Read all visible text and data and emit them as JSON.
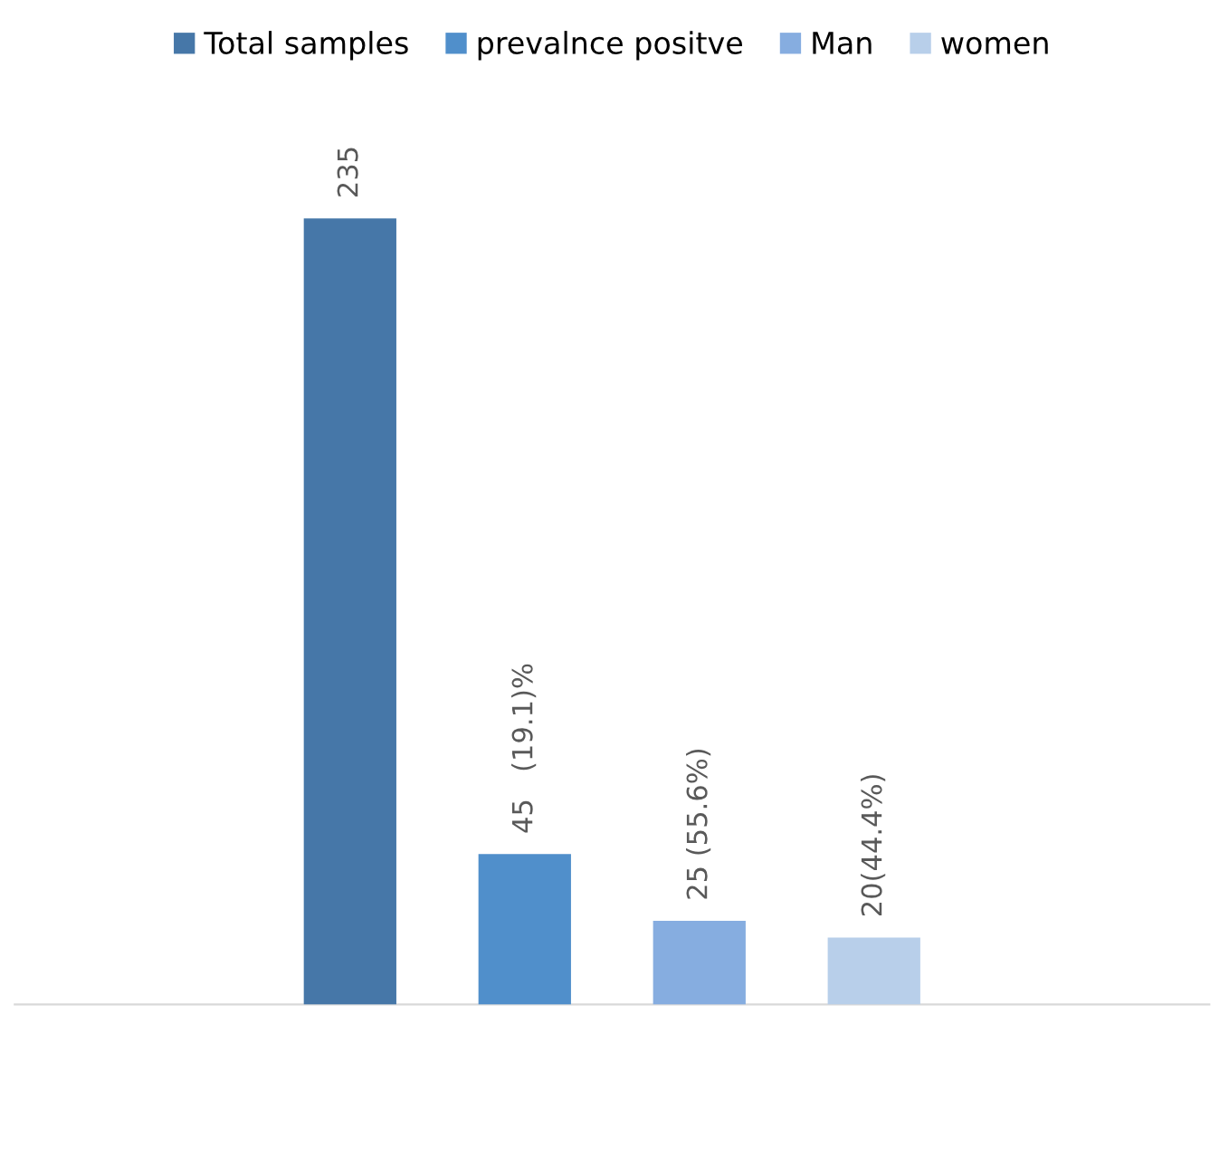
{
  "chart_data": {
    "type": "bar",
    "categories": [
      null,
      null,
      null,
      null
    ],
    "series": [
      {
        "name": "Total samples",
        "color": "#4677a8",
        "values": [
          235,
          null,
          null,
          null
        ],
        "value_labels": [
          "235",
          null,
          null,
          null
        ]
      },
      {
        "name": "prevalnce positve",
        "color": "#508fcb",
        "values": [
          null,
          45,
          null,
          null
        ],
        "value_labels": [
          null,
          "45   (19.1)%",
          null,
          null
        ]
      },
      {
        "name": "Man",
        "color": "#86ade0",
        "values": [
          null,
          null,
          25,
          null
        ],
        "value_labels": [
          null,
          null,
          "25 (55.6%)",
          null
        ]
      },
      {
        "name": "women",
        "color": "#b8cfea",
        "values": [
          null,
          null,
          null,
          20
        ],
        "value_labels": [
          null,
          null,
          null,
          "20(44.4%)"
        ]
      }
    ],
    "stacked": true,
    "legend": "top",
    "grid": false
  }
}
